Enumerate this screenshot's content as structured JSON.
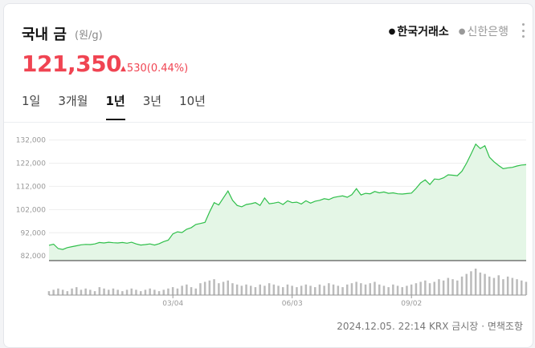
{
  "header": {
    "title": "국내 금",
    "unit": "(원/g)",
    "sources": [
      {
        "label": "한국거래소",
        "active": true
      },
      {
        "label": "신한은행",
        "active": false
      }
    ],
    "more_icon": "more-vertical-icon"
  },
  "quote": {
    "price": "121,350",
    "change": "530",
    "change_pct": "(0.44%)",
    "direction_icon": "triangle-up-icon",
    "color_up": "#f04452"
  },
  "periods": [
    {
      "label": "1일",
      "active": false
    },
    {
      "label": "3개월",
      "active": false
    },
    {
      "label": "1년",
      "active": true
    },
    {
      "label": "3년",
      "active": false
    },
    {
      "label": "10년",
      "active": false
    }
  ],
  "footer": {
    "timestamp": "2024.12.05. 22:14",
    "market": "KRX 금시장",
    "disclaimer": "면책조항"
  },
  "chart_data": {
    "type": "area",
    "ylim": [
      80000,
      136000
    ],
    "y_ticks": [
      "82,000",
      "92,000",
      "102,000",
      "112,000",
      "122,000",
      "132,000"
    ],
    "y_tick_values": [
      82000,
      92000,
      102000,
      112000,
      122000,
      132000
    ],
    "x_ticks": [
      "03/04",
      "06/03",
      "09/02",
      "12/02"
    ],
    "x_tick_index": [
      27,
      53,
      79,
      109
    ],
    "line_color": "#2fbf4a",
    "fill_color": "#e4f6e6",
    "grid": true,
    "series": [
      {
        "values": [
          86600,
          87100,
          85200,
          84800,
          85600,
          86000,
          86400,
          86800,
          87000,
          86900,
          87200,
          87800,
          87600,
          87900,
          87700,
          87600,
          87800,
          87500,
          87900,
          87200,
          86700,
          86900,
          87200,
          86700,
          87300,
          88200,
          88800,
          91500,
          92400,
          92100,
          93500,
          94200,
          95600,
          96000,
          96500,
          101000,
          105000,
          104000,
          107000,
          110000,
          106000,
          103800,
          103200,
          104200,
          104500,
          105000,
          103800,
          107000,
          104500,
          104800,
          105200,
          104200,
          105800,
          105000,
          105200,
          104400,
          105800,
          104800,
          105600,
          106000,
          106700,
          106300,
          107200,
          107600,
          107900,
          107300,
          108400,
          111000,
          108300,
          109000,
          108800,
          109800,
          109200,
          109600,
          109000,
          109200,
          108800,
          108700,
          108900,
          109100,
          111100,
          113500,
          114800,
          112800,
          115200,
          115000,
          115700,
          117000,
          116800,
          116600,
          118500,
          122000,
          126000,
          130200,
          128300,
          129500,
          124600,
          122600,
          121000,
          119600,
          120000,
          120200,
          120800,
          121200,
          121350
        ]
      }
    ],
    "volume": [
      3,
      4,
      5,
      4,
      3,
      5,
      6,
      4,
      5,
      4,
      3,
      6,
      5,
      4,
      5,
      4,
      3,
      4,
      5,
      4,
      3,
      4,
      5,
      4,
      3,
      4,
      5,
      6,
      5,
      7,
      8,
      6,
      5,
      9,
      10,
      11,
      12,
      9,
      10,
      11,
      9,
      8,
      7,
      8,
      7,
      6,
      8,
      7,
      9,
      8,
      7,
      6,
      8,
      7,
      6,
      7,
      8,
      7,
      6,
      8,
      7,
      9,
      8,
      7,
      6,
      8,
      9,
      10,
      9,
      8,
      9,
      10,
      8,
      7,
      6,
      8,
      7,
      6,
      7,
      8,
      9,
      10,
      11,
      9,
      10,
      12,
      11,
      13,
      12,
      11,
      14,
      16,
      18,
      20,
      17,
      16,
      14,
      13,
      15,
      12,
      14,
      13,
      12,
      11,
      10
    ]
  }
}
